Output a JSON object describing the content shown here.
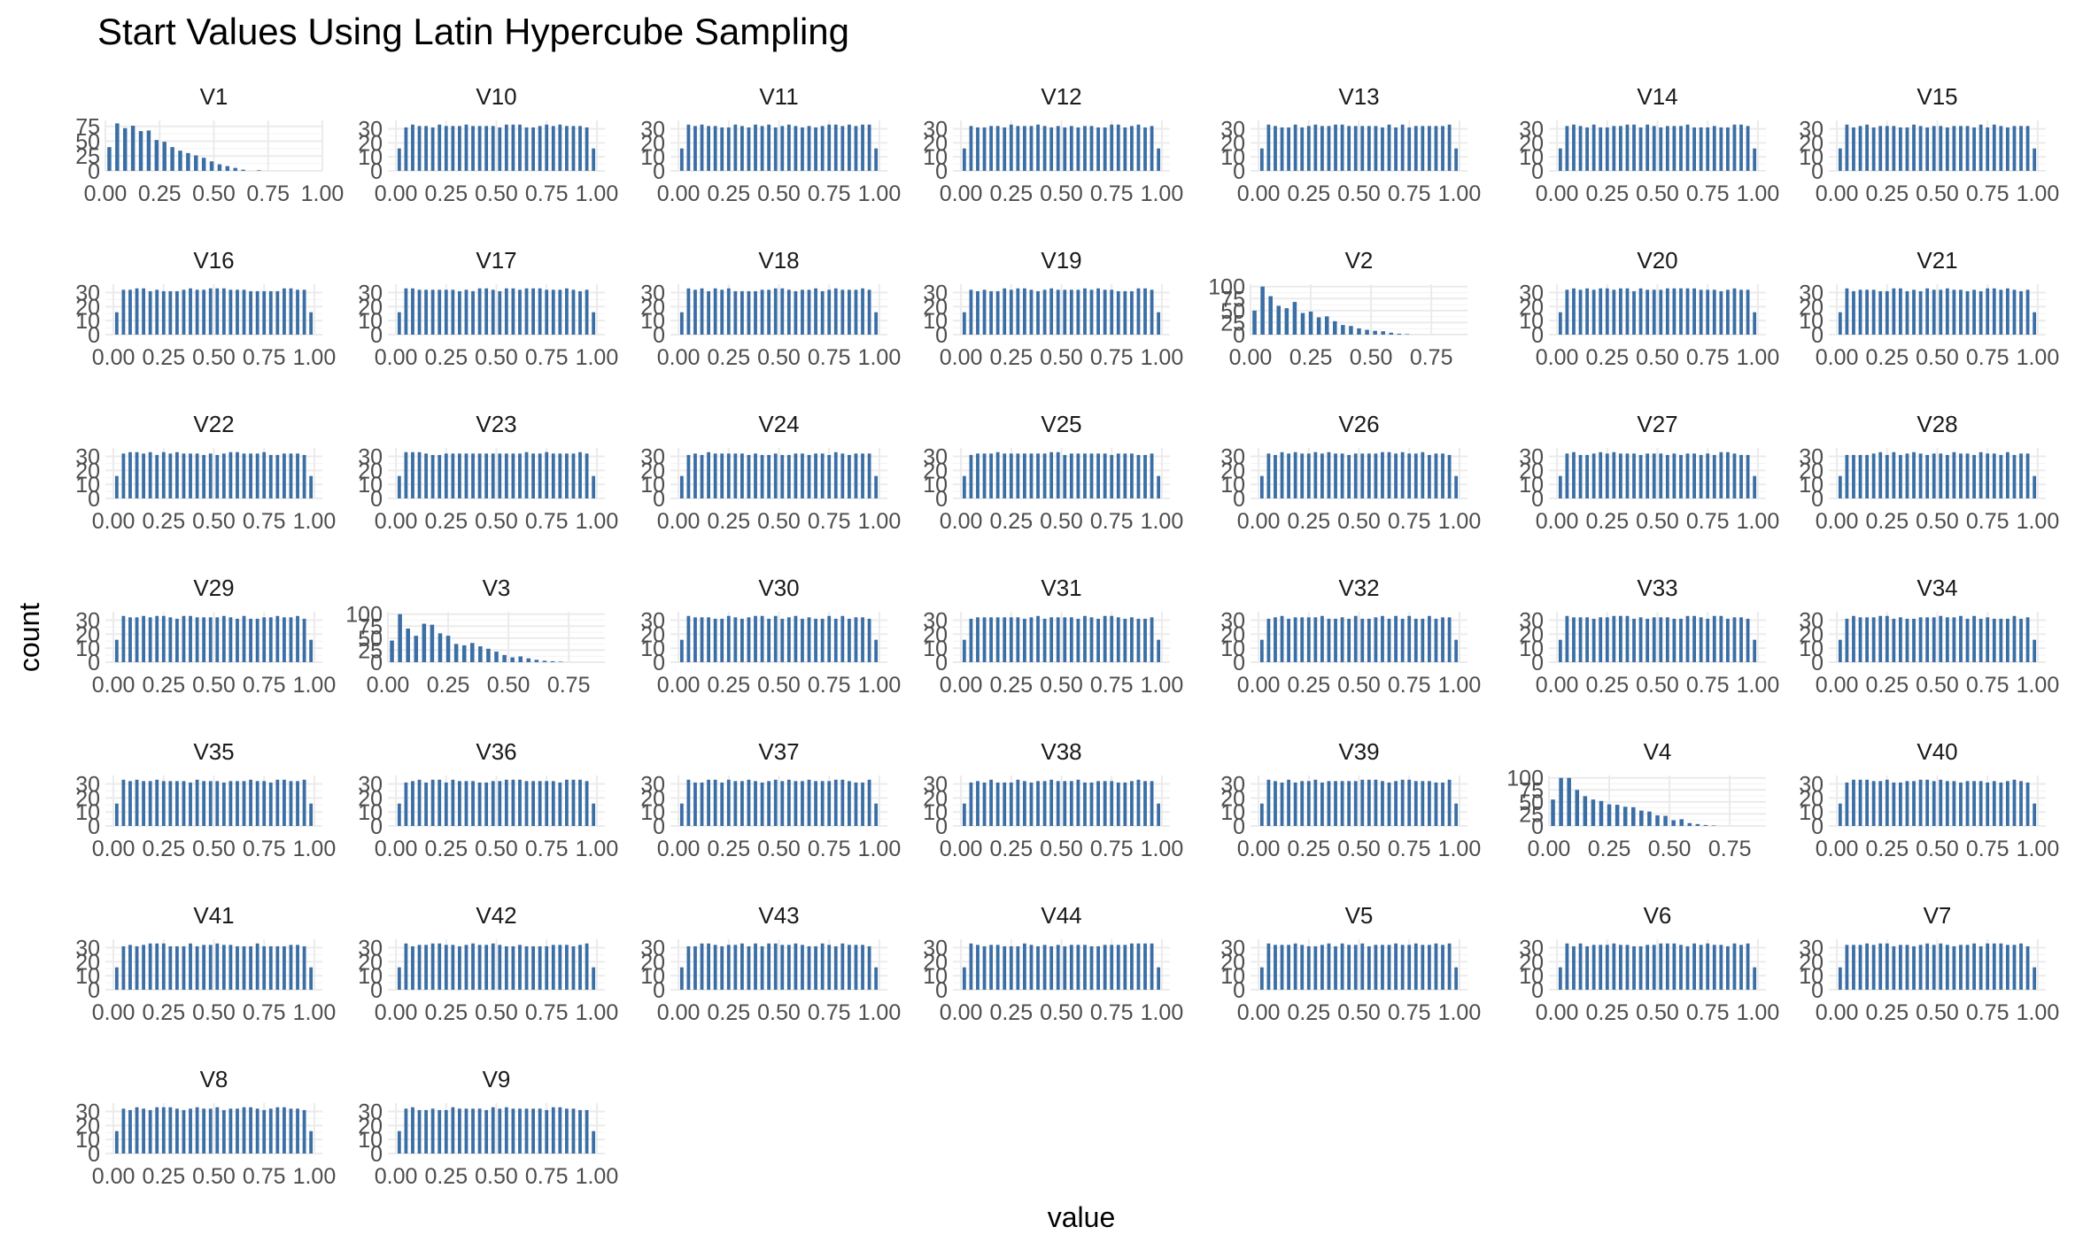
{
  "chart_data": {
    "type": "bar",
    "title": "Start Values Using Latin Hypercube Sampling",
    "xlabel": "value",
    "ylabel": "count",
    "bar_color": "#3a6ea5",
    "grid": true,
    "layout": {
      "columns": 7,
      "rows": 7
    },
    "panels": [
      {
        "name": "V1",
        "kind": "skew",
        "xlim": [
          0,
          1.0
        ],
        "ylim": [
          0,
          85
        ],
        "x_ticks": [
          "0.00",
          "0.25",
          "0.50",
          "0.75",
          "1.00"
        ],
        "y_ticks": [
          "0",
          "25",
          "50",
          "75"
        ],
        "values": [
          40,
          80,
          72,
          76,
          67,
          68,
          52,
          49,
          40,
          34,
          30,
          26,
          22,
          16,
          11,
          8,
          5,
          2,
          0,
          1,
          0,
          0,
          0,
          0,
          0,
          0,
          0
        ]
      },
      {
        "name": "V10",
        "kind": "uniform",
        "seed": 3
      },
      {
        "name": "V11",
        "kind": "uniform",
        "seed": 5
      },
      {
        "name": "V12",
        "kind": "uniform",
        "seed": 7
      },
      {
        "name": "V13",
        "kind": "uniform",
        "seed": 11
      },
      {
        "name": "V14",
        "kind": "uniform",
        "seed": 13
      },
      {
        "name": "V15",
        "kind": "uniform",
        "seed": 17
      },
      {
        "name": "V16",
        "kind": "uniform",
        "seed": 19
      },
      {
        "name": "V17",
        "kind": "uniform",
        "seed": 23
      },
      {
        "name": "V18",
        "kind": "uniform",
        "seed": 29
      },
      {
        "name": "V19",
        "kind": "uniform",
        "seed": 31
      },
      {
        "name": "V2",
        "kind": "skew",
        "xlim": [
          0,
          0.9
        ],
        "ylim": [
          0,
          105
        ],
        "x_ticks": [
          "0.00",
          "0.25",
          "0.50",
          "0.75"
        ],
        "y_ticks": [
          "0",
          "25",
          "50",
          "75",
          "100"
        ],
        "values": [
          50,
          100,
          80,
          60,
          55,
          68,
          45,
          48,
          36,
          38,
          28,
          20,
          18,
          13,
          10,
          8,
          7,
          4,
          2,
          1,
          0,
          0,
          0,
          0,
          0,
          0,
          0
        ]
      },
      {
        "name": "V20",
        "kind": "uniform",
        "seed": 37
      },
      {
        "name": "V21",
        "kind": "uniform",
        "seed": 41
      },
      {
        "name": "V22",
        "kind": "uniform",
        "seed": 43
      },
      {
        "name": "V23",
        "kind": "uniform",
        "seed": 47
      },
      {
        "name": "V24",
        "kind": "uniform",
        "seed": 53
      },
      {
        "name": "V25",
        "kind": "uniform",
        "seed": 59
      },
      {
        "name": "V26",
        "kind": "uniform",
        "seed": 61
      },
      {
        "name": "V27",
        "kind": "uniform",
        "seed": 67
      },
      {
        "name": "V28",
        "kind": "uniform",
        "seed": 71
      },
      {
        "name": "V29",
        "kind": "uniform",
        "seed": 73
      },
      {
        "name": "V3",
        "kind": "skew",
        "xlim": [
          0,
          0.9
        ],
        "ylim": [
          0,
          105
        ],
        "x_ticks": [
          "0.00",
          "0.25",
          "0.50",
          "0.75"
        ],
        "y_ticks": [
          "0",
          "25",
          "50",
          "75",
          "100"
        ],
        "values": [
          45,
          100,
          70,
          55,
          80,
          78,
          60,
          55,
          38,
          35,
          40,
          33,
          28,
          22,
          15,
          10,
          12,
          8,
          5,
          3,
          2,
          1,
          0,
          0,
          0,
          0,
          0
        ]
      },
      {
        "name": "V30",
        "kind": "uniform",
        "seed": 79
      },
      {
        "name": "V31",
        "kind": "uniform",
        "seed": 83
      },
      {
        "name": "V32",
        "kind": "uniform",
        "seed": 89
      },
      {
        "name": "V33",
        "kind": "uniform",
        "seed": 97
      },
      {
        "name": "V34",
        "kind": "uniform",
        "seed": 101
      },
      {
        "name": "V35",
        "kind": "uniform",
        "seed": 103
      },
      {
        "name": "V36",
        "kind": "uniform",
        "seed": 107
      },
      {
        "name": "V37",
        "kind": "uniform",
        "seed": 109
      },
      {
        "name": "V38",
        "kind": "uniform",
        "seed": 113
      },
      {
        "name": "V39",
        "kind": "uniform",
        "seed": 127
      },
      {
        "name": "V4",
        "kind": "skew",
        "xlim": [
          0,
          0.9
        ],
        "ylim": [
          0,
          105
        ],
        "x_ticks": [
          "0.00",
          "0.25",
          "0.50",
          "0.75"
        ],
        "y_ticks": [
          "0",
          "25",
          "50",
          "75",
          "100"
        ],
        "values": [
          55,
          100,
          100,
          75,
          62,
          55,
          52,
          45,
          44,
          40,
          39,
          32,
          30,
          22,
          21,
          12,
          14,
          6,
          4,
          2,
          1,
          0,
          0,
          0,
          0,
          0,
          0
        ]
      },
      {
        "name": "V40",
        "kind": "uniform",
        "seed": 131
      },
      {
        "name": "V41",
        "kind": "uniform",
        "seed": 137
      },
      {
        "name": "V42",
        "kind": "uniform",
        "seed": 139
      },
      {
        "name": "V43",
        "kind": "uniform",
        "seed": 149
      },
      {
        "name": "V44",
        "kind": "uniform",
        "seed": 151
      },
      {
        "name": "V5",
        "kind": "uniform",
        "seed": 157
      },
      {
        "name": "V6",
        "kind": "uniform",
        "seed": 163
      },
      {
        "name": "V7",
        "kind": "uniform",
        "seed": 167
      },
      {
        "name": "V8",
        "kind": "uniform",
        "seed": 173
      },
      {
        "name": "V9",
        "kind": "uniform",
        "seed": 179
      }
    ],
    "uniform_defaults": {
      "xlim": [
        -0.04,
        1.04
      ],
      "ylim": [
        0,
        36
      ],
      "x_ticks": [
        "0.00",
        "0.25",
        "0.50",
        "0.75",
        "1.00"
      ],
      "y_ticks": [
        "0",
        "10",
        "20",
        "30"
      ],
      "bins": 30,
      "edge_value": 16,
      "center_value": 32
    }
  }
}
